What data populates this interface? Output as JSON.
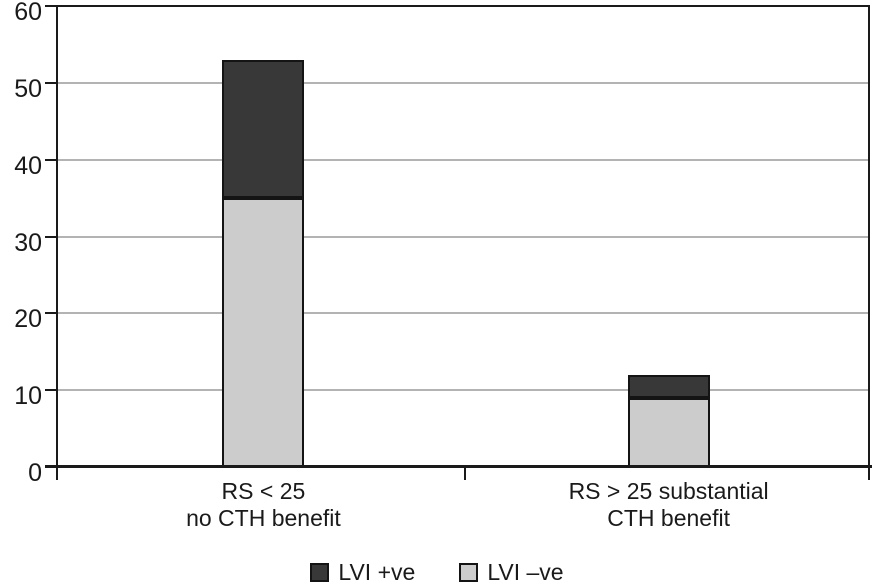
{
  "figure": {
    "background_color": "#ffffff",
    "text_color": "#1a1a1a",
    "axis_color": "#1a1a1a",
    "gridline_color": "#b3b3b3"
  },
  "chart_data": {
    "type": "bar",
    "stacked": true,
    "title": "",
    "xlabel": "",
    "ylabel": "",
    "ylim": [
      0,
      60
    ],
    "yticks": [
      0,
      10,
      20,
      30,
      40,
      50,
      60
    ],
    "grid": "horizontal-gray-lines",
    "legend_position": "bottom-center",
    "categories": [
      {
        "lines": [
          "RS < 25",
          "no CTH benefit"
        ],
        "center_fraction": 0.253
      },
      {
        "lines": [
          "RS > 25 substantial",
          "CTH benefit"
        ],
        "center_fraction": 0.752
      }
    ],
    "series": [
      {
        "name": "LVI –ve",
        "color": "#cccccc",
        "stack_position": "bottom",
        "values": [
          35,
          9
        ]
      },
      {
        "name": "LVI +ve",
        "color": "#383838",
        "stack_position": "top",
        "values": [
          18,
          3
        ]
      }
    ],
    "stack_totals": [
      53,
      12
    ],
    "legend": [
      {
        "label": "LVI +ve",
        "swatch_color": "#383838"
      },
      {
        "label": "LVI –ve",
        "swatch_color": "#cccccc"
      }
    ]
  }
}
